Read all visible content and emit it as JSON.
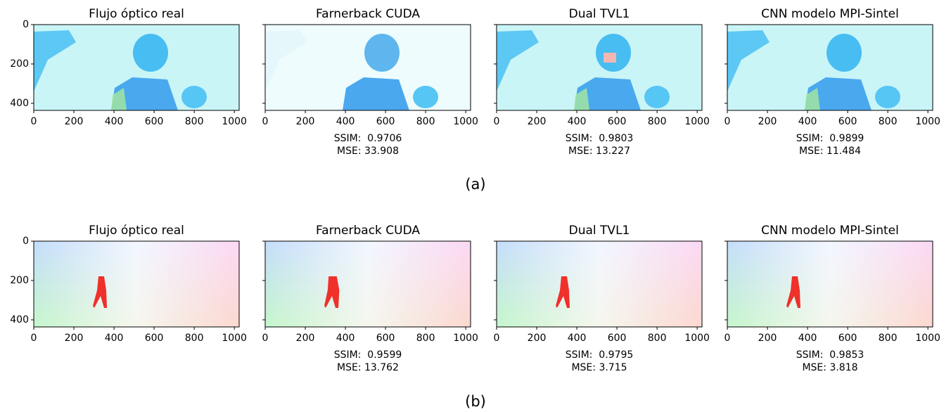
{
  "chart_data": [
    {
      "type": "image",
      "title": "Flujo óptico real",
      "xlim": [
        0,
        1024
      ],
      "ylim": [
        436,
        0
      ],
      "xticks": [
        0,
        200,
        400,
        600,
        800,
        1000
      ],
      "yticks": [
        0,
        200,
        400
      ]
    },
    {
      "type": "image",
      "title": "Farnerback CUDA",
      "xlim": [
        0,
        1024
      ],
      "ylim": [
        436,
        0
      ],
      "xticks": [
        0,
        200,
        400,
        600,
        800,
        1000
      ],
      "yticks": [
        0,
        200,
        400
      ],
      "yticklabels": false,
      "annotations": [
        "SSIM:  0.9706",
        "MSE: 33.908"
      ]
    },
    {
      "type": "image",
      "title": "Dual TVL1",
      "xlim": [
        0,
        1024
      ],
      "ylim": [
        436,
        0
      ],
      "xticks": [
        0,
        200,
        400,
        600,
        800,
        1000
      ],
      "yticks": [
        0,
        200,
        400
      ],
      "yticklabels": false,
      "annotations": [
        "SSIM:  0.9803",
        "MSE: 13.227"
      ]
    },
    {
      "type": "image",
      "title": "CNN modelo MPI-Sintel",
      "xlim": [
        0,
        1024
      ],
      "ylim": [
        436,
        0
      ],
      "xticks": [
        0,
        200,
        400,
        600,
        800,
        1000
      ],
      "yticks": [
        0,
        200,
        400
      ],
      "yticklabels": false,
      "annotations": [
        "SSIM:  0.9899",
        "MSE: 11.484"
      ]
    },
    {
      "type": "image",
      "title": "Flujo óptico real",
      "xlim": [
        0,
        1024
      ],
      "ylim": [
        436,
        0
      ],
      "xticks": [
        0,
        200,
        400,
        600,
        800,
        1000
      ],
      "yticks": [
        0,
        200,
        400
      ]
    },
    {
      "type": "image",
      "title": "Farnerback CUDA",
      "xlim": [
        0,
        1024
      ],
      "ylim": [
        436,
        0
      ],
      "xticks": [
        0,
        200,
        400,
        600,
        800,
        1000
      ],
      "yticks": [
        0,
        200,
        400
      ],
      "yticklabels": false,
      "annotations": [
        "SSIM:  0.9599",
        "MSE: 13.762"
      ]
    },
    {
      "type": "image",
      "title": "Dual TVL1",
      "xlim": [
        0,
        1024
      ],
      "ylim": [
        436,
        0
      ],
      "xticks": [
        0,
        200,
        400,
        600,
        800,
        1000
      ],
      "yticks": [
        0,
        200,
        400
      ],
      "yticklabels": false,
      "annotations": [
        "SSIM:  0.9795",
        "MSE: 3.715"
      ]
    },
    {
      "type": "image",
      "title": "CNN modelo MPI-Sintel",
      "xlim": [
        0,
        1024
      ],
      "ylim": [
        436,
        0
      ],
      "xticks": [
        0,
        200,
        400,
        600,
        800,
        1000
      ],
      "yticks": [
        0,
        200,
        400
      ],
      "yticklabels": false,
      "annotations": [
        "SSIM:  0.9853",
        "MSE: 3.818"
      ]
    }
  ],
  "captions": [
    "(a)",
    "(b)"
  ]
}
